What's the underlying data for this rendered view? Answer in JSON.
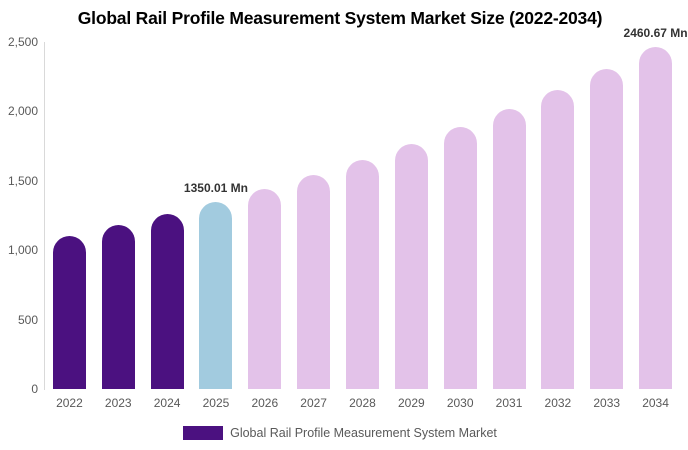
{
  "chart_data": {
    "type": "bar",
    "title": "Global Rail Profile Measurement System Market Size (2022-2034)",
    "unit": "Mn",
    "categories": [
      "2022",
      "2023",
      "2024",
      "2025",
      "2026",
      "2027",
      "2028",
      "2029",
      "2030",
      "2031",
      "2032",
      "2033",
      "2034"
    ],
    "values": [
      1105.11,
      1181.36,
      1262.87,
      1350.01,
      1443.16,
      1542.74,
      1649.19,
      1762.98,
      1884.63,
      2014.67,
      2153.68,
      2302.28,
      2460.67
    ],
    "bar_roles": [
      "historical",
      "historical",
      "historical",
      "highlight",
      "forecast",
      "forecast",
      "forecast",
      "forecast",
      "forecast",
      "forecast",
      "forecast",
      "forecast",
      "forecast"
    ],
    "colors": {
      "historical": "#4b1180",
      "highlight": "#a2cbdf",
      "forecast": "#e3c2e9"
    },
    "ylim": [
      0,
      2500
    ],
    "ytick_labels": [
      "0",
      "500",
      "1,000",
      "1,500",
      "2,000",
      "2,500"
    ],
    "grid": false,
    "legend_position": "bottom",
    "legend": {
      "label": "Global Rail Profile Measurement System Market",
      "swatch_color": "#4b1180"
    },
    "annotations": [
      {
        "category": "2025",
        "text": "1350.01 Mn"
      },
      {
        "category": "2034",
        "text": "2460.67 Mn"
      }
    ]
  }
}
